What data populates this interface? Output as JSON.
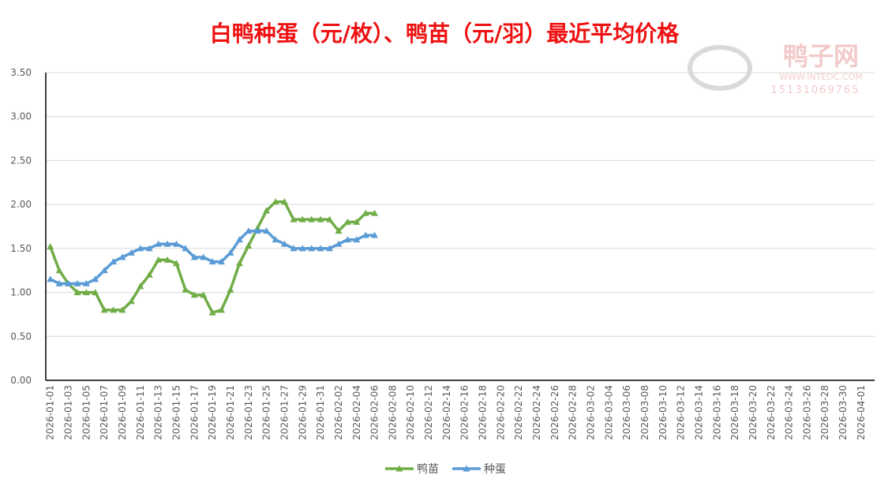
{
  "chart_data": {
    "type": "line",
    "title": "白鸭种蛋（元/枚）、鸭苗（元/羽）最近平均价格",
    "watermark": {
      "name": "鸭子网",
      "url": "WWW.INTEDC.COM",
      "phone": "15131069765"
    },
    "categories": [
      "2026-01-01",
      null,
      "2026-01-03",
      null,
      "2026-01-05",
      null,
      "2026-01-07",
      null,
      "2026-01-09",
      null,
      "2026-01-11",
      null,
      "2026-01-13",
      null,
      "2026-01-15",
      null,
      "2026-01-17",
      null,
      "2026-01-19",
      null,
      "2026-01-21",
      null,
      "2026-01-23",
      null,
      "2026-01-25",
      null,
      "2026-01-27",
      null,
      "2026-01-29",
      null,
      "2026-01-31",
      null,
      "2026-02-02",
      null,
      "2026-02-04",
      null,
      "2026-02-06",
      null,
      "2026-02-08",
      null,
      "2026-02-10",
      null,
      "2026-02-12",
      null,
      "2026-02-14",
      null,
      "2026-02-16",
      null,
      "2026-02-18",
      null,
      "2026-02-20",
      null,
      "2026-02-22",
      null,
      "2026-02-24",
      null,
      "2026-02-26",
      null,
      "2026-02-28",
      null,
      "2026-03-02",
      null,
      "2026-03-04",
      null,
      "2026-03-06",
      null,
      "2026-03-08",
      null,
      "2026-03-10",
      null,
      "2026-03-12",
      null,
      "2026-03-14",
      null,
      "2026-03-16",
      null,
      "2026-03-18",
      null,
      "2026-03-20",
      null,
      "2026-03-22",
      null,
      "2026-03-24",
      null,
      "2026-03-26",
      null,
      "2026-03-28",
      null,
      "2026-03-30",
      null,
      "2026-04-01",
      null
    ],
    "series": [
      {
        "name": "鸭苗",
        "color": "#70ad47",
        "values": [
          1.52,
          1.25,
          1.1,
          1.0,
          1.0,
          1.0,
          0.8,
          0.8,
          0.8,
          0.9,
          1.07,
          1.2,
          1.37,
          1.37,
          1.33,
          1.03,
          0.97,
          0.97,
          0.77,
          0.8,
          1.03,
          1.33,
          1.53,
          1.73,
          1.93,
          2.03,
          2.03,
          1.83,
          1.83,
          1.83,
          1.83,
          1.83,
          1.7,
          1.8,
          1.8,
          1.9,
          1.9,
          null,
          null,
          null,
          null,
          null,
          null,
          null,
          null,
          null,
          null,
          null,
          null,
          null,
          null,
          null,
          null,
          null,
          null,
          null,
          null,
          null,
          null,
          null,
          null,
          null,
          null,
          null,
          null,
          null,
          null,
          null,
          null,
          null,
          null,
          null,
          null,
          null,
          null,
          null,
          null,
          null,
          null,
          null,
          null,
          null,
          null,
          null,
          null,
          null,
          null,
          null,
          null,
          null,
          null,
          null
        ]
      },
      {
        "name": "种蛋",
        "color": "#5b9bd5",
        "values": [
          1.15,
          1.1,
          1.1,
          1.1,
          1.1,
          1.15,
          1.25,
          1.35,
          1.4,
          1.45,
          1.5,
          1.5,
          1.55,
          1.55,
          1.55,
          1.5,
          1.4,
          1.4,
          1.35,
          1.35,
          1.45,
          1.6,
          1.7,
          1.7,
          1.7,
          1.6,
          1.55,
          1.5,
          1.5,
          1.5,
          1.5,
          1.5,
          1.55,
          1.6,
          1.6,
          1.65,
          1.65,
          null,
          null,
          null,
          null,
          null,
          null,
          null,
          null,
          null,
          null,
          null,
          null,
          null,
          null,
          null,
          null,
          null,
          null,
          null,
          null,
          null,
          null,
          null,
          null,
          null,
          null,
          null,
          null,
          null,
          null,
          null,
          null,
          null,
          null,
          null,
          null,
          null,
          null,
          null,
          null,
          null,
          null,
          null,
          null,
          null,
          null,
          null,
          null,
          null,
          null,
          null,
          null,
          null,
          null,
          null
        ]
      }
    ],
    "ylim": [
      0,
      3.5
    ],
    "yticks": [
      {
        "value": 0,
        "label": "0.00"
      },
      {
        "value": 0.5,
        "label": "0.50"
      },
      {
        "value": 1,
        "label": "1.00"
      },
      {
        "value": 1.5,
        "label": "1.50"
      },
      {
        "value": 2,
        "label": "2.00"
      },
      {
        "value": 2.5,
        "label": "2.50"
      },
      {
        "value": 3,
        "label": "3.00"
      },
      {
        "value": 3.5,
        "label": "3.50"
      }
    ],
    "grid": true,
    "legend": "bottom"
  }
}
